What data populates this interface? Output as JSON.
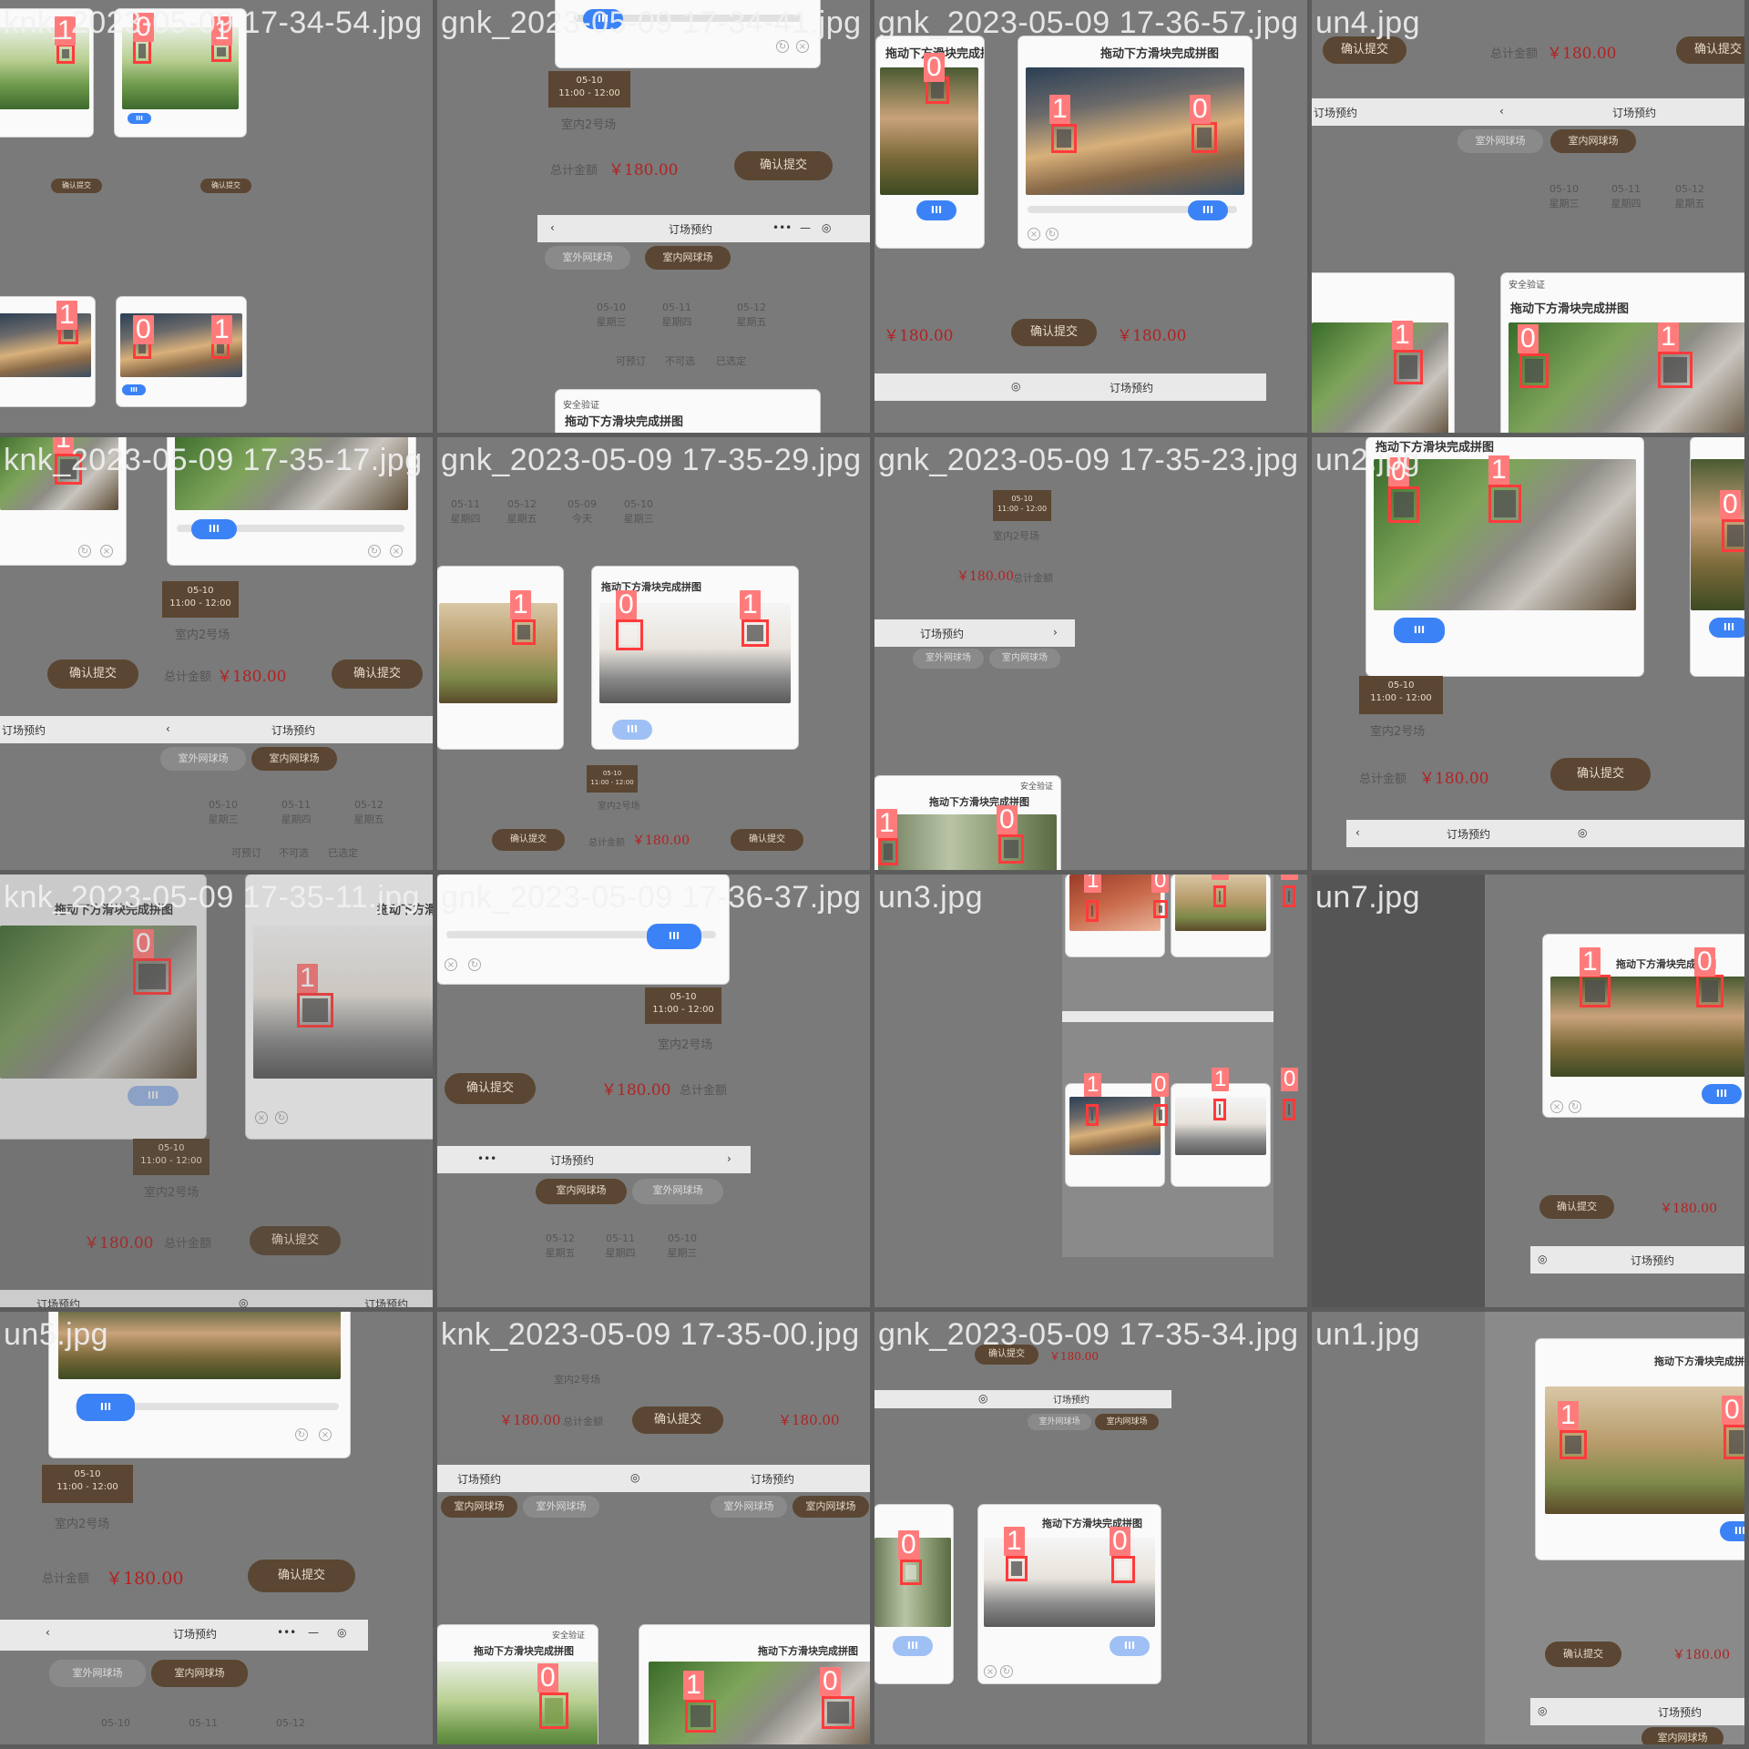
{
  "tiles": [
    {
      "label": "knk_2023-05-09  17-34-54.jpg"
    },
    {
      "label": "gnk_2023-05-09  17-34-41.jpg"
    },
    {
      "label": "gnk_2023-05-09  17-36-57.jpg"
    },
    {
      "label": "un4.jpg"
    },
    {
      "label": "knk_2023-05-09  17-35-17.jpg"
    },
    {
      "label": "gnk_2023-05-09  17-35-29.jpg"
    },
    {
      "label": "gnk_2023-05-09  17-35-23.jpg"
    },
    {
      "label": "un2.jpg"
    },
    {
      "label": "knk_2023-05-09  17-35-11.jpg"
    },
    {
      "label": "gnk_2023-05-09  17-36-37.jpg"
    },
    {
      "label": "un3.jpg"
    },
    {
      "label": "un7.jpg"
    },
    {
      "label": "un5.jpg"
    },
    {
      "label": "knk_2023-05-09  17-35-00.jpg"
    },
    {
      "label": "gnk_2023-05-09  17-35-34.jpg"
    },
    {
      "label": "un1.jpg"
    }
  ],
  "ui": {
    "puzzle_title": "拖动下方滑块完成拼图",
    "security": "安全验证",
    "booking_title": "订场预约",
    "indoor": "室内网球场",
    "outdoor": "室外网球场",
    "total_label": "总计金额",
    "total_price": "￥180.00",
    "submit": "确认提交",
    "court": "室内2号场",
    "slot_date": "05-10",
    "slot_time": "11:00 - 12:00",
    "knob": "III",
    "legend_bookable": "可预订",
    "legend_unavailable": "不可选",
    "legend_selected": "已选定",
    "days": [
      {
        "date": "05-09",
        "week": "今天"
      },
      {
        "date": "05-10",
        "week": "星期三"
      },
      {
        "date": "05-11",
        "week": "星期四"
      },
      {
        "date": "05-12",
        "week": "星期五"
      }
    ]
  },
  "detection_labels": {
    "class0": "0",
    "class1": "1"
  },
  "colors": {
    "box": "#ff3b3b",
    "tag": "#ff7b7b",
    "brand_brown": "#5a4632",
    "knob_blue": "#3b82f6",
    "price_red": "#b22222"
  }
}
